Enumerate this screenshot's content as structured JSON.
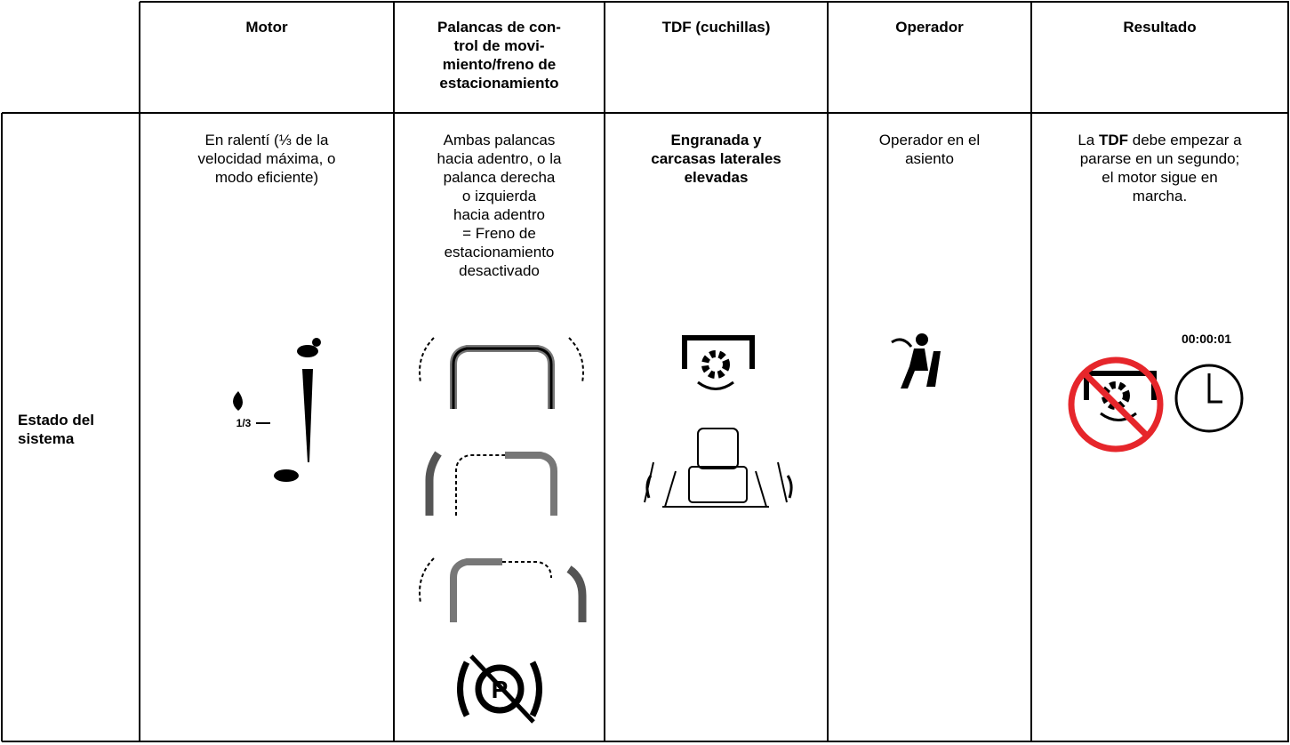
{
  "header": {
    "motor": "Motor",
    "palancas": [
      "Palancas de con-",
      "trol de movi-",
      "miento/freno de",
      "estacionamiento"
    ],
    "tdf": "TDF (cuchillas)",
    "operador": "Operador",
    "resultado": "Resultado"
  },
  "row": {
    "label": [
      "Estado del",
      "sistema"
    ],
    "motor": [
      "En ralentí (⅓ de la",
      "velocidad máxima, o",
      "modo eficiente)"
    ],
    "motor_icon_label": "1/3",
    "palancas": [
      "Ambas palancas",
      "hacia adentro, o la",
      "palanca derecha",
      "o izquierda",
      "hacia adentro",
      "= Freno de",
      "estacionamiento",
      "desactivado"
    ],
    "tdf": [
      "Engranada y",
      "carcasas laterales",
      "elevadas"
    ],
    "operador": [
      "Operador en el",
      "asiento"
    ],
    "resultado": {
      "before": "La ",
      "bold": "TDF",
      "lines": [
        "debe empezar a",
        "pararse en un segundo;",
        "el motor sigue en",
        "marcha."
      ]
    },
    "timer": "00:00:01"
  }
}
